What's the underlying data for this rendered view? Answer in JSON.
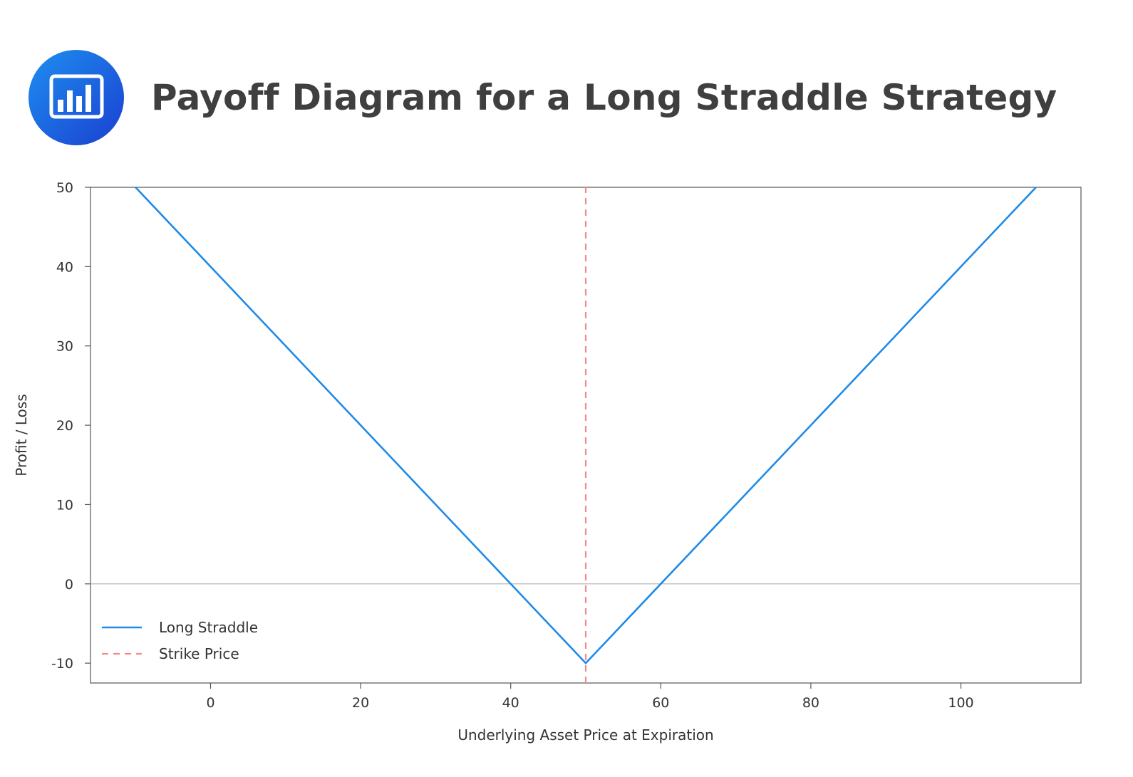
{
  "header": {
    "title": "Payoff Diagram for a Long Straddle Strategy",
    "icon": "bar-chart-icon",
    "icon_colors": [
      "#1e8ff0",
      "#1a3fd0"
    ]
  },
  "chart_data": {
    "type": "line",
    "title": "Payoff Diagram for a Long Straddle Strategy",
    "xlabel": "Underlying Asset Price at Expiration",
    "ylabel": "Profit / Loss",
    "xlim": [
      -16,
      116
    ],
    "ylim": [
      -12.5,
      50
    ],
    "xticks": [
      0,
      20,
      40,
      60,
      80,
      100
    ],
    "yticks": [
      -10,
      0,
      10,
      20,
      30,
      40,
      50
    ],
    "series": [
      {
        "name": "Long Straddle",
        "color": "#1f8be8",
        "style": "solid",
        "x": [
          -10,
          50,
          110
        ],
        "y": [
          50,
          -10,
          50
        ]
      },
      {
        "name": "Strike Price",
        "color": "#f28a8a",
        "style": "dashed",
        "x": [
          50,
          50
        ],
        "y": [
          -12.5,
          53
        ]
      }
    ],
    "reference_line": {
      "y": 0,
      "color": "#b0b0b0"
    },
    "legend": "bottom-left",
    "grid": false
  }
}
